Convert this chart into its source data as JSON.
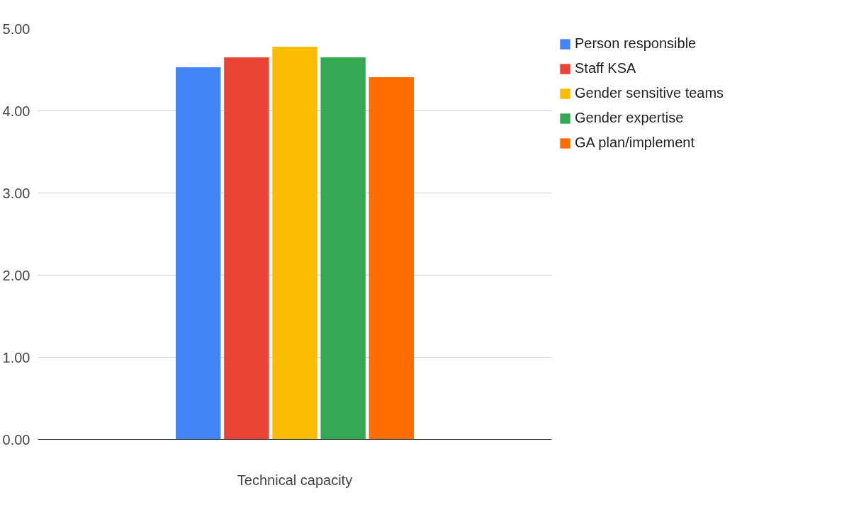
{
  "chart_data": {
    "type": "bar",
    "categories": [
      "Technical capacity"
    ],
    "series": [
      {
        "name": "Person responsible",
        "color": "#4285f4",
        "values": [
          4.53
        ]
      },
      {
        "name": "Staff KSA",
        "color": "#ea4335",
        "values": [
          4.65
        ]
      },
      {
        "name": "Gender sensitive teams",
        "color": "#fbbc04",
        "values": [
          4.78
        ]
      },
      {
        "name": "Gender expertise",
        "color": "#34a853",
        "values": [
          4.65
        ]
      },
      {
        "name": "GA plan/implement",
        "color": "#ff6d01",
        "values": [
          4.41
        ]
      }
    ],
    "ylim": [
      0,
      5
    ],
    "yticks": [
      {
        "value": 0,
        "label": "0.00"
      },
      {
        "value": 1,
        "label": "1.00"
      },
      {
        "value": 2,
        "label": "2.00"
      },
      {
        "value": 3,
        "label": "3.00"
      },
      {
        "value": 4,
        "label": "4.00"
      },
      {
        "value": 5,
        "label": "5.00"
      }
    ],
    "grid": "y",
    "legend": "top right"
  }
}
